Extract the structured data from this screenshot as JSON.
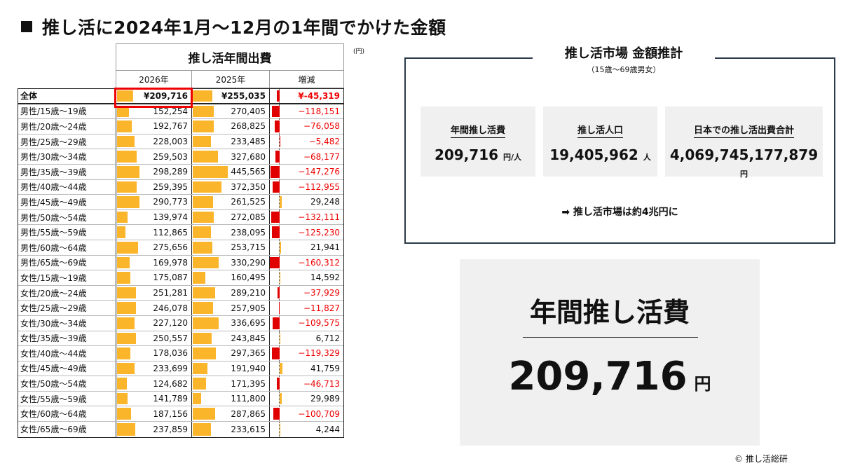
{
  "title": "推し活に2024年1月～12月の1年間でかけた金額",
  "table": {
    "title": "推し活年間出費",
    "unit": "(円)",
    "headers": [
      "2026年",
      "2025年",
      "増減"
    ],
    "total": {
      "label": "全体",
      "y2026": "¥209,716",
      "y2025": "¥255,035",
      "diff": "¥-45,319",
      "v2026": 209716,
      "v2025": 255035,
      "d": -45319
    },
    "rows": [
      [
        "男性/15歳～19歳",
        152254,
        270405,
        -118151
      ],
      [
        "男性/20歳～24歳",
        192767,
        268825,
        -76058
      ],
      [
        "男性/25歳～29歳",
        228003,
        233485,
        -5482
      ],
      [
        "男性/30歳～34歳",
        259503,
        327680,
        -68177
      ],
      [
        "男性/35歳～39歳",
        298289,
        445565,
        -147276
      ],
      [
        "男性/40歳～44歳",
        259395,
        372350,
        -112955
      ],
      [
        "男性/45歳～49歳",
        290773,
        261525,
        29248
      ],
      [
        "男性/50歳～54歳",
        139974,
        272085,
        -132111
      ],
      [
        "男性/55歳～59歳",
        112865,
        238095,
        -125230
      ],
      [
        "男性/60歳～64歳",
        275656,
        253715,
        21941
      ],
      [
        "男性/65歳～69歳",
        169978,
        330290,
        -160312
      ],
      [
        "女性/15歳～19歳",
        175087,
        160495,
        14592
      ],
      [
        "女性/20歳～24歳",
        251281,
        289210,
        -37929
      ],
      [
        "女性/25歳～29歳",
        246078,
        257905,
        -11827
      ],
      [
        "女性/30歳～34歳",
        227120,
        336695,
        -109575
      ],
      [
        "女性/35歳～39歳",
        250557,
        243845,
        6712
      ],
      [
        "女性/40歳～44歳",
        178036,
        297365,
        -119329
      ],
      [
        "女性/45歳～49歳",
        233699,
        191940,
        41759
      ],
      [
        "女性/50歳～54歳",
        124682,
        171395,
        -46713
      ],
      [
        "女性/55歳～59歳",
        141789,
        111800,
        29989
      ],
      [
        "女性/60歳～64歳",
        187156,
        287865,
        -100709
      ],
      [
        "女性/65歳～69歳",
        237859,
        233615,
        4244
      ]
    ]
  },
  "market": {
    "title": "推し活市場 金額推計",
    "subtitle": "（15歳〜69歳男女）",
    "cards": [
      {
        "label": "年間推し活費",
        "value": "209,716",
        "unit": "円/人"
      },
      {
        "label": "推し活人口",
        "value": "19,405,962",
        "unit": "人"
      },
      {
        "label": "日本での推し活出費合計",
        "value": "4,069,745,177,879",
        "unit": "円"
      }
    ],
    "conclusion": "➡ 推し活市場は約4兆円に"
  },
  "big": {
    "label": "年間推し活費",
    "value": "209,716",
    "unit": "円"
  },
  "copyright": "© 推し活総研",
  "colors": {
    "bar": "#fbb52a",
    "negative": "#e00000"
  }
}
